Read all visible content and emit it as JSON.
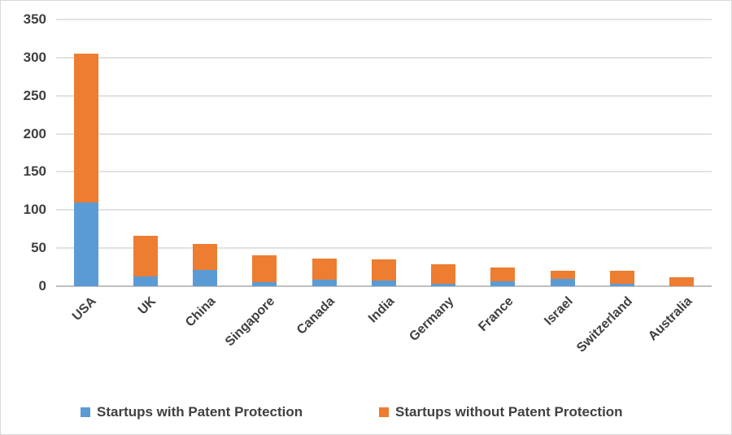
{
  "chart_data": {
    "type": "bar",
    "stacked": true,
    "title": "",
    "xlabel": "",
    "ylabel": "",
    "categories": [
      "USA",
      "UK",
      "China",
      "Singapore",
      "Canada",
      "India",
      "Germany",
      "France",
      "Israel",
      "Switzerland",
      "Australia"
    ],
    "series": [
      {
        "name": "Startups with Patent Protection",
        "color": "#5B9BD5",
        "values": [
          110,
          13,
          21,
          5,
          9,
          8,
          3,
          6,
          10,
          3,
          0
        ]
      },
      {
        "name": "Startups without Patent Protection",
        "color": "#ED7D31",
        "values": [
          195,
          53,
          34,
          36,
          27,
          27,
          26,
          19,
          10,
          17,
          12
        ]
      }
    ],
    "totals": [
      305,
      66,
      55,
      41,
      36,
      35,
      29,
      25,
      20,
      20,
      12
    ],
    "ylim": [
      0,
      350
    ],
    "ytick_step": 50,
    "yticks": [
      0,
      50,
      100,
      150,
      200,
      250,
      300,
      350
    ],
    "grid": true,
    "legend_position": "bottom"
  },
  "colors": {
    "series_with_patent": "#5B9BD5",
    "series_without_patent": "#ED7D31",
    "gridline": "#E2E2E2",
    "axis_line": "#BFBFBF",
    "label_text": "#404040",
    "background": "#FFFFFF"
  }
}
